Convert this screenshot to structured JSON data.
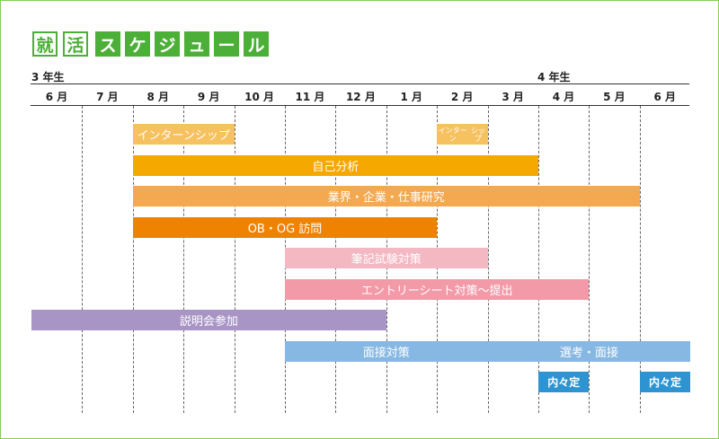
{
  "title": {
    "outlined": [
      "就",
      "活"
    ],
    "filled": [
      "ス",
      "ケ",
      "ジ",
      "ュ",
      "ー",
      "ル"
    ]
  },
  "years": [
    "3 年生",
    "4 年生"
  ],
  "months": [
    "6 月",
    "7 月",
    "8 月",
    "9 月",
    "10 月",
    "11 月",
    "12 月",
    "1 月",
    "2 月",
    "3 月",
    "4 月",
    "5 月",
    "6 月"
  ],
  "bars": [
    {
      "id": "intern-1",
      "label": "インターンシップ",
      "start": 2,
      "end": 4,
      "row": 0,
      "color": "#f6c15f"
    },
    {
      "id": "intern-2",
      "label": "インターン\nシップ",
      "start": 8,
      "end": 9,
      "row": 0,
      "color": "#f6c15f",
      "small": true
    },
    {
      "id": "self-analysis",
      "label": "自己分析",
      "start": 2,
      "end": 10,
      "row": 1,
      "color": "#f5a800"
    },
    {
      "id": "industry-research",
      "label": "業界・企業・仕事研究",
      "start": 2,
      "end": 12,
      "row": 2,
      "color": "#f4a950"
    },
    {
      "id": "ob-og-visit",
      "label": "OB・OG 訪問",
      "start": 2,
      "end": 8,
      "row": 3,
      "color": "#ef8200"
    },
    {
      "id": "written-test",
      "label": "筆記試験対策",
      "start": 5,
      "end": 9,
      "row": 4,
      "color": "#f4b8c2"
    },
    {
      "id": "entry-sheet",
      "label": "エントリーシート対策〜提出",
      "start": 5,
      "end": 11,
      "row": 5,
      "color": "#f29aa8"
    },
    {
      "id": "info-session",
      "label": "説明会参加",
      "start": 0,
      "end": 7,
      "row": 6,
      "color": "#a895c6"
    },
    {
      "id": "interview-prep",
      "label": "面接対策",
      "start": 5,
      "end": 9,
      "row": 7,
      "color": "#86b8e3"
    },
    {
      "id": "selection-interview",
      "label": "選考・面接",
      "start": 9,
      "end": 13,
      "row": 7,
      "color": "#86b8e3"
    },
    {
      "id": "offer-1",
      "label": "内々定",
      "start": 10,
      "end": 11,
      "row": 8,
      "color": "#2d94d1",
      "decision": true
    },
    {
      "id": "offer-2",
      "label": "内々定",
      "start": 12,
      "end": 13,
      "row": 8,
      "color": "#2d94d1",
      "decision": true
    }
  ]
}
